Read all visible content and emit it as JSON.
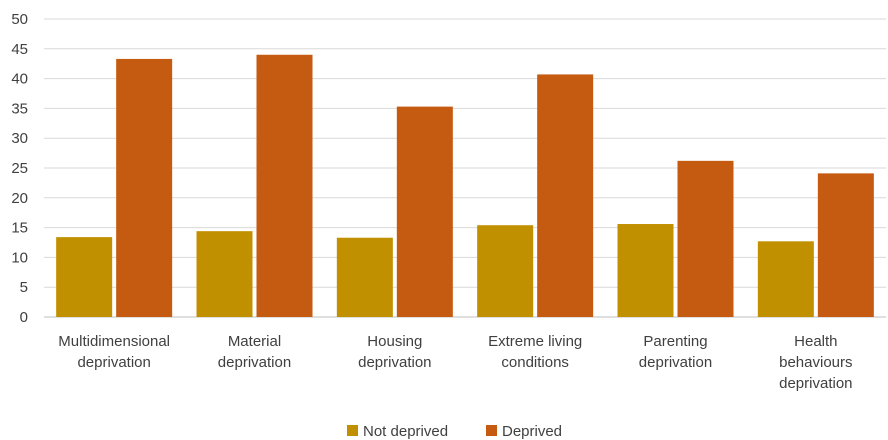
{
  "chart_data": {
    "type": "bar",
    "title": "",
    "xlabel": "",
    "ylabel": "",
    "ylim": [
      0,
      50
    ],
    "yticks": [
      0,
      5,
      10,
      15,
      20,
      25,
      30,
      35,
      40,
      45,
      50
    ],
    "grid": true,
    "legend_position": "bottom",
    "categories": [
      [
        "Multidimensional",
        "deprivation"
      ],
      [
        "Material",
        "deprivation"
      ],
      [
        "Housing",
        "deprivation"
      ],
      [
        "Extreme living",
        "conditions"
      ],
      [
        "Parenting",
        "deprivation"
      ],
      [
        "Health",
        "behaviours",
        "deprivation"
      ]
    ],
    "series": [
      {
        "name": "Not deprived",
        "color": "#C09000",
        "values": [
          13.4,
          14.4,
          13.3,
          15.4,
          15.6,
          12.7
        ]
      },
      {
        "name": "Deprived",
        "color": "#C55A11",
        "values": [
          43.3,
          44.0,
          35.3,
          40.7,
          26.2,
          24.1
        ]
      }
    ]
  }
}
